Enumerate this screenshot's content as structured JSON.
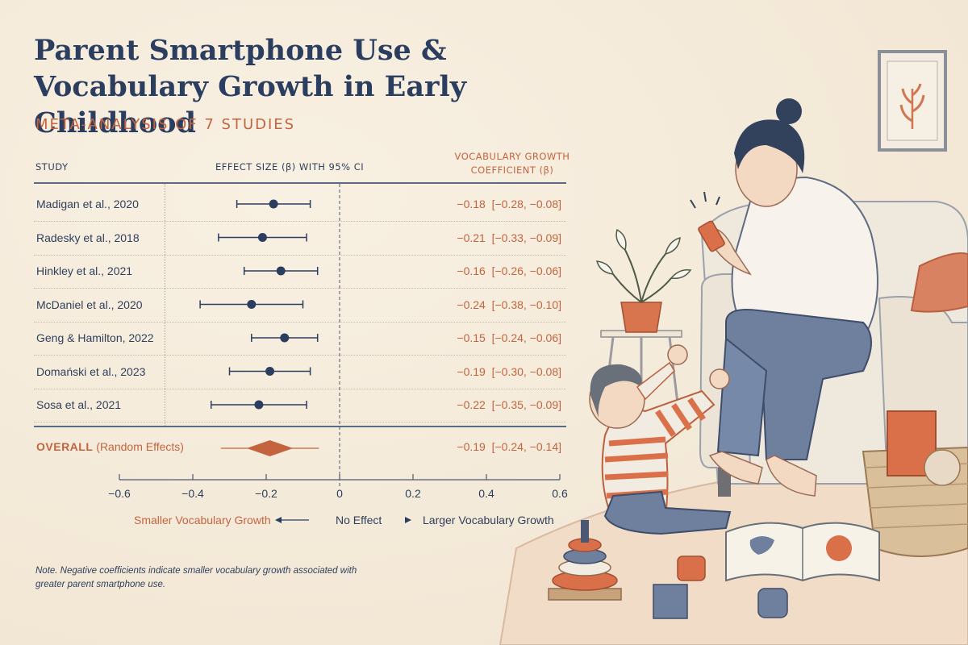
{
  "title": "Parent Smartphone Use & Vocabulary Growth in Early Childhood",
  "subtitle": "META-ANALYSIS OF 7 STUDIES",
  "headers": {
    "study": "STUDY",
    "effect": "EFFECT SIZE (β) WITH 95% CI",
    "coef_line1": "VOCABULARY GROWTH",
    "coef_line2": "COEFFICIENT (β)"
  },
  "labels": {
    "left": "Smaller Vocabulary Growth",
    "mid": "No Effect",
    "right": "Larger Vocabulary Growth"
  },
  "note": "Note. Negative coefficients indicate smaller vocabulary growth associated with greater parent smartphone use.",
  "colors": {
    "navy": "#2b3e5f",
    "terracotta": "#c4643f",
    "paper": "#f5ecdc"
  },
  "chart_data": {
    "type": "forest",
    "xlim": [
      -0.6,
      0.6
    ],
    "ticks": [
      -0.6,
      -0.4,
      -0.2,
      0,
      0.2,
      0.4,
      0.6
    ],
    "tick_labels": [
      "−0.6",
      "−0.4",
      "−0.2",
      "0",
      "0.2",
      "0.4",
      "0.6"
    ],
    "studies": [
      {
        "name": "Madigan et al., 2020",
        "est": -0.18,
        "lo": -0.28,
        "hi": -0.08,
        "label": "−0.18  [−0.28, −0.08]"
      },
      {
        "name": "Radesky et al., 2018",
        "est": -0.21,
        "lo": -0.33,
        "hi": -0.09,
        "label": "−0.21  [−0.33, −0.09]"
      },
      {
        "name": "Hinkley et al., 2021",
        "est": -0.16,
        "lo": -0.26,
        "hi": -0.06,
        "label": "−0.16  [−0.26, −0.06]"
      },
      {
        "name": "McDaniel et al., 2020",
        "est": -0.24,
        "lo": -0.38,
        "hi": -0.1,
        "label": "−0.24  [−0.38, −0.10]"
      },
      {
        "name": "Geng & Hamilton, 2022",
        "est": -0.15,
        "lo": -0.24,
        "hi": -0.06,
        "label": "−0.15  [−0.24, −0.06]"
      },
      {
        "name": "Domański et al., 2023",
        "est": -0.19,
        "lo": -0.3,
        "hi": -0.08,
        "label": "−0.19  [−0.30, −0.08]"
      },
      {
        "name": "Sosa et al., 2021",
        "est": -0.22,
        "lo": -0.35,
        "hi": -0.09,
        "label": "−0.22  [−0.35, −0.09]"
      }
    ],
    "overall": {
      "name_bold": "OVERALL",
      "name_rest": " (Random Effects)",
      "est": -0.19,
      "lo": -0.24,
      "hi": -0.14,
      "label": "−0.19  [−0.24, −0.14]"
    }
  }
}
